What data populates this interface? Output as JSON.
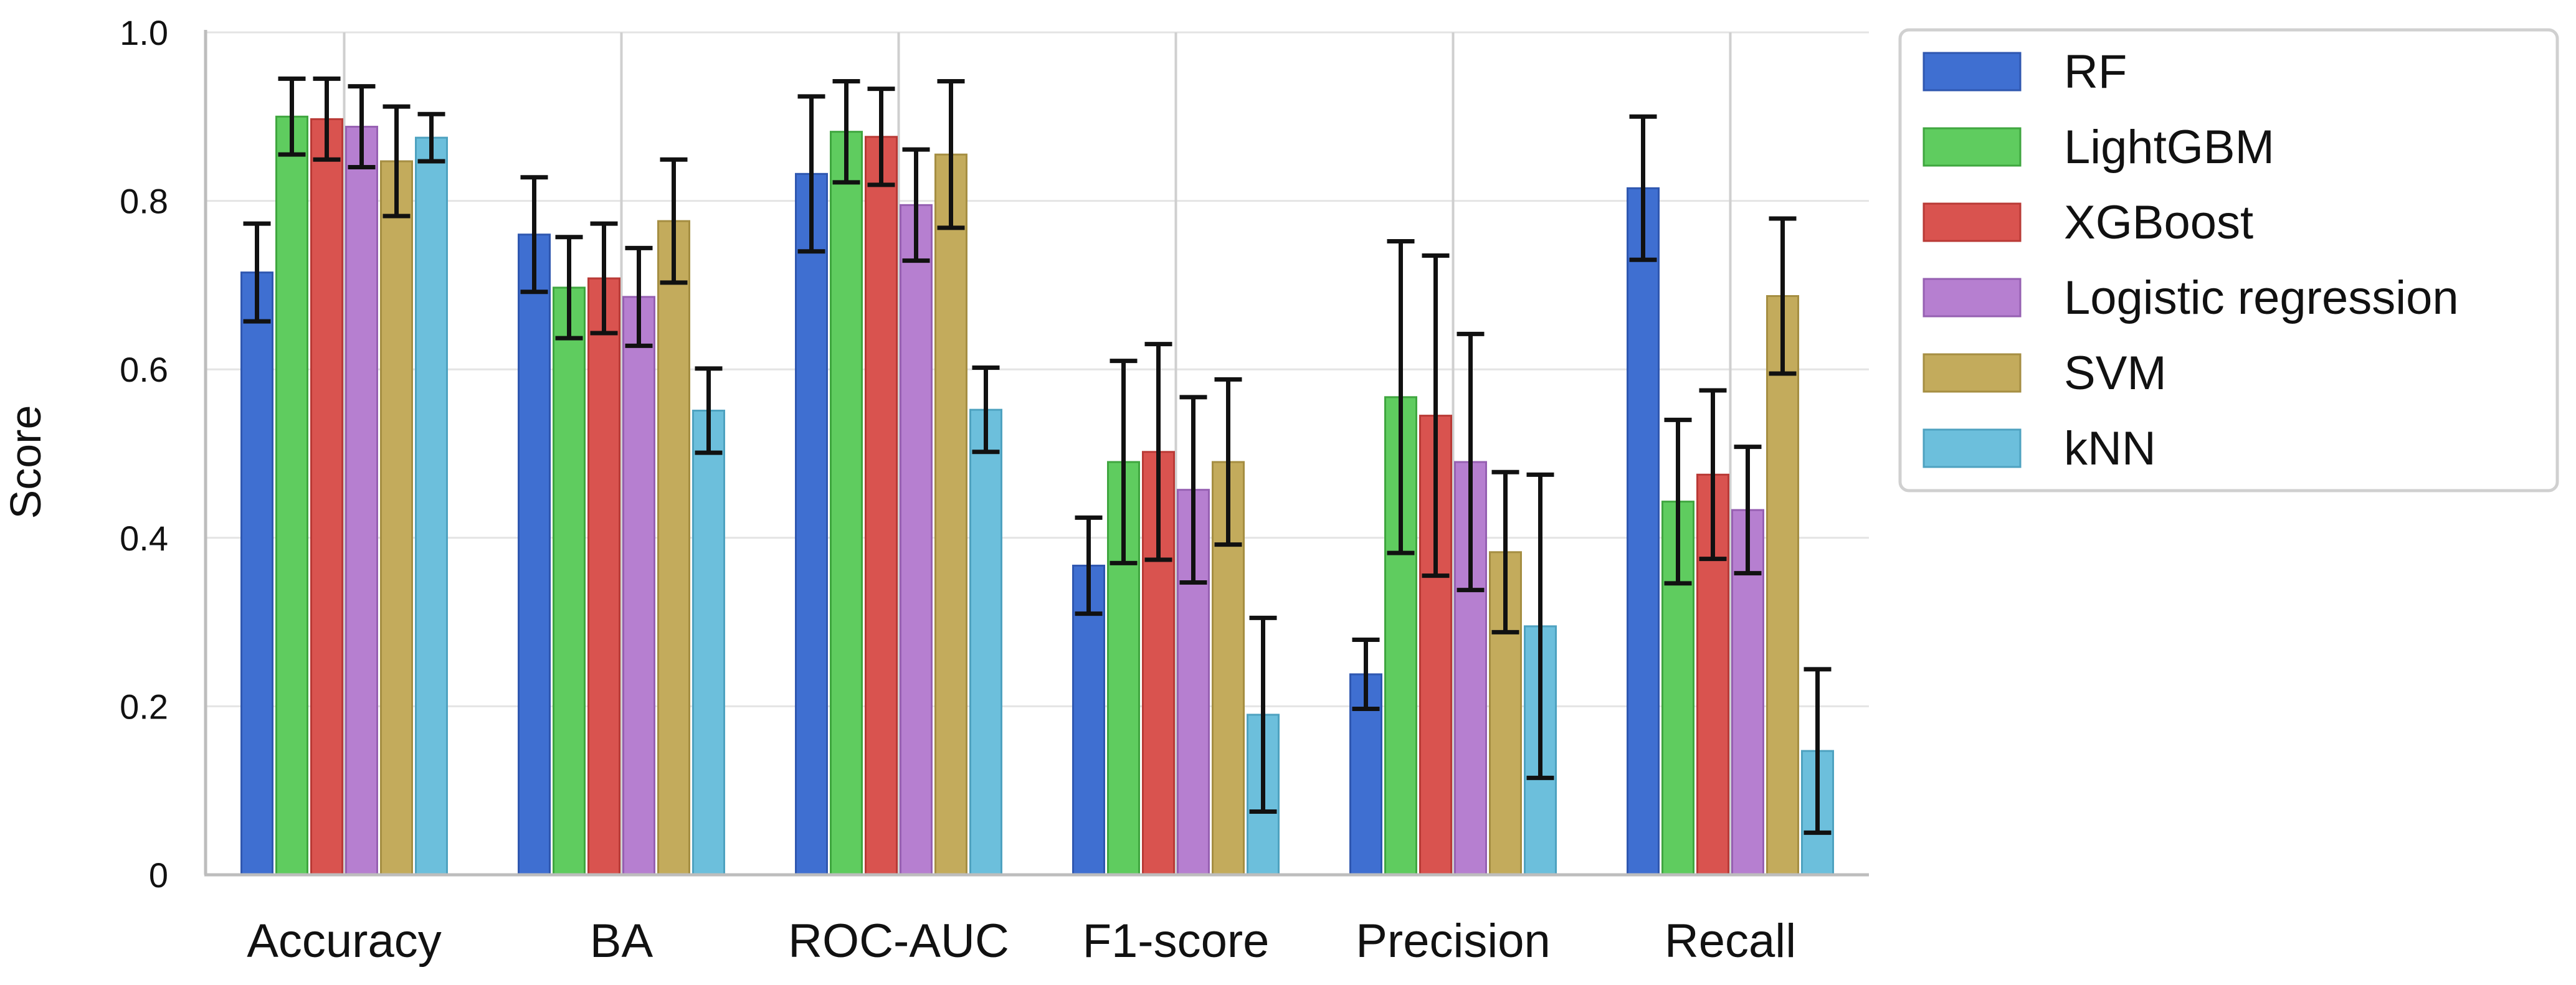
{
  "chart_data": {
    "type": "bar",
    "title": "",
    "xlabel": "",
    "ylabel": "Score",
    "ylim": [
      0,
      1.0
    ],
    "yticks": [
      {
        "value": 0,
        "label": "0"
      },
      {
        "value": 0.2,
        "label": "0.2"
      },
      {
        "value": 0.4,
        "label": "0.4"
      },
      {
        "value": 0.6,
        "label": "0.6"
      },
      {
        "value": 0.8,
        "label": "0.8"
      },
      {
        "value": 1.0,
        "label": "1.0"
      }
    ],
    "categories": [
      "Accuracy",
      "BA",
      "ROC-AUC",
      "F1-score",
      "Precision",
      "Recall"
    ],
    "legend_position": "outside-right-top",
    "grid": true,
    "series": [
      {
        "name": "RF",
        "color": "#3f6fd1",
        "edge": "#2f57b0",
        "values": [
          0.715,
          0.76,
          0.832,
          0.367,
          0.238,
          0.815
        ],
        "errors": [
          0.058,
          0.068,
          0.092,
          0.057,
          0.041,
          0.085
        ]
      },
      {
        "name": "LightGBM",
        "color": "#5fcc5f",
        "edge": "#3fa63f",
        "values": [
          0.9,
          0.697,
          0.882,
          0.49,
          0.567,
          0.443
        ],
        "errors": [
          0.045,
          0.06,
          0.06,
          0.12,
          0.185,
          0.097
        ]
      },
      {
        "name": "XGBoost",
        "color": "#d9534f",
        "edge": "#b93a36",
        "values": [
          0.897,
          0.708,
          0.876,
          0.502,
          0.545,
          0.475
        ],
        "errors": [
          0.048,
          0.065,
          0.057,
          0.128,
          0.19,
          0.1
        ]
      },
      {
        "name": "Logistic regression",
        "color": "#b67fd0",
        "edge": "#9660b2",
        "values": [
          0.888,
          0.686,
          0.795,
          0.457,
          0.49,
          0.433
        ],
        "errors": [
          0.048,
          0.058,
          0.066,
          0.11,
          0.152,
          0.075
        ]
      },
      {
        "name": "SVM",
        "color": "#c3ab5c",
        "edge": "#a58e42",
        "values": [
          0.847,
          0.776,
          0.855,
          0.49,
          0.383,
          0.687
        ],
        "errors": [
          0.065,
          0.073,
          0.087,
          0.098,
          0.095,
          0.092
        ]
      },
      {
        "name": "kNN",
        "color": "#6cbfdc",
        "edge": "#4ea2c0",
        "values": [
          0.875,
          0.551,
          0.552,
          0.19,
          0.295,
          0.147
        ],
        "errors": [
          0.028,
          0.05,
          0.05,
          0.115,
          0.18,
          0.097
        ]
      }
    ]
  }
}
